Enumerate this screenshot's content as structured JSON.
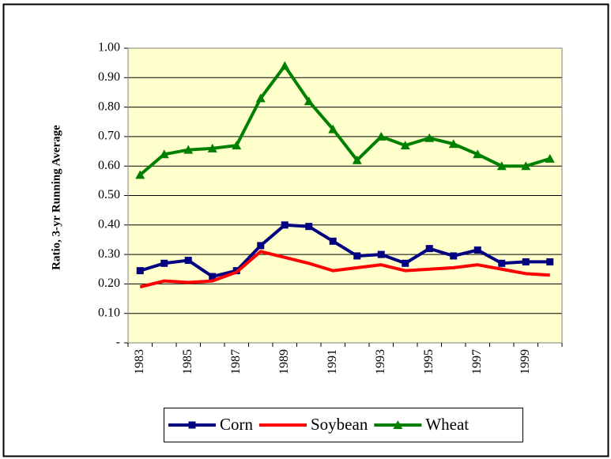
{
  "chart_data": {
    "type": "line",
    "ylabel": "Ratio, 3-yr Running Average",
    "categories": [
      "1983",
      null,
      "1985",
      null,
      "1987",
      null,
      "1989",
      null,
      "1991",
      null,
      "1993",
      null,
      "1995",
      null,
      "1997",
      null,
      "1999",
      null
    ],
    "series": [
      {
        "name": "Corn",
        "color": "#000080",
        "marker": "square",
        "values": [
          0.245,
          0.27,
          0.28,
          0.225,
          0.245,
          0.33,
          0.4,
          0.395,
          0.345,
          0.295,
          0.3,
          0.27,
          0.32,
          0.295,
          0.315,
          0.27,
          0.275,
          0.275
        ]
      },
      {
        "name": "Soybean",
        "color": "#ff0000",
        "marker": "none",
        "values": [
          0.19,
          0.21,
          0.205,
          0.21,
          0.24,
          0.31,
          0.29,
          0.27,
          0.245,
          0.255,
          0.265,
          0.245,
          0.25,
          0.255,
          0.265,
          0.25,
          0.235,
          0.23
        ]
      },
      {
        "name": "Wheat",
        "color": "#008000",
        "marker": "triangle",
        "values": [
          0.57,
          0.64,
          0.655,
          0.66,
          0.67,
          0.83,
          0.94,
          0.82,
          0.725,
          0.62,
          0.7,
          0.67,
          0.695,
          0.675,
          0.64,
          0.6,
          0.6,
          0.625
        ]
      }
    ],
    "ylim": [
      0,
      1
    ],
    "yticks": [
      {
        "value": 0,
        "label": "-"
      },
      {
        "value": 0.1,
        "label": "0.10"
      },
      {
        "value": 0.2,
        "label": "0.20"
      },
      {
        "value": 0.3,
        "label": "0.30"
      },
      {
        "value": 0.4,
        "label": "0.40"
      },
      {
        "value": 0.5,
        "label": "0.50"
      },
      {
        "value": 0.6,
        "label": "0.60"
      },
      {
        "value": 0.7,
        "label": "0.70"
      },
      {
        "value": 0.8,
        "label": "0.80"
      },
      {
        "value": 0.9,
        "label": "0.90"
      },
      {
        "value": 1,
        "label": "1.00"
      }
    ],
    "grid": true,
    "plot_background": "#ffffcc",
    "legend": "bottom"
  }
}
